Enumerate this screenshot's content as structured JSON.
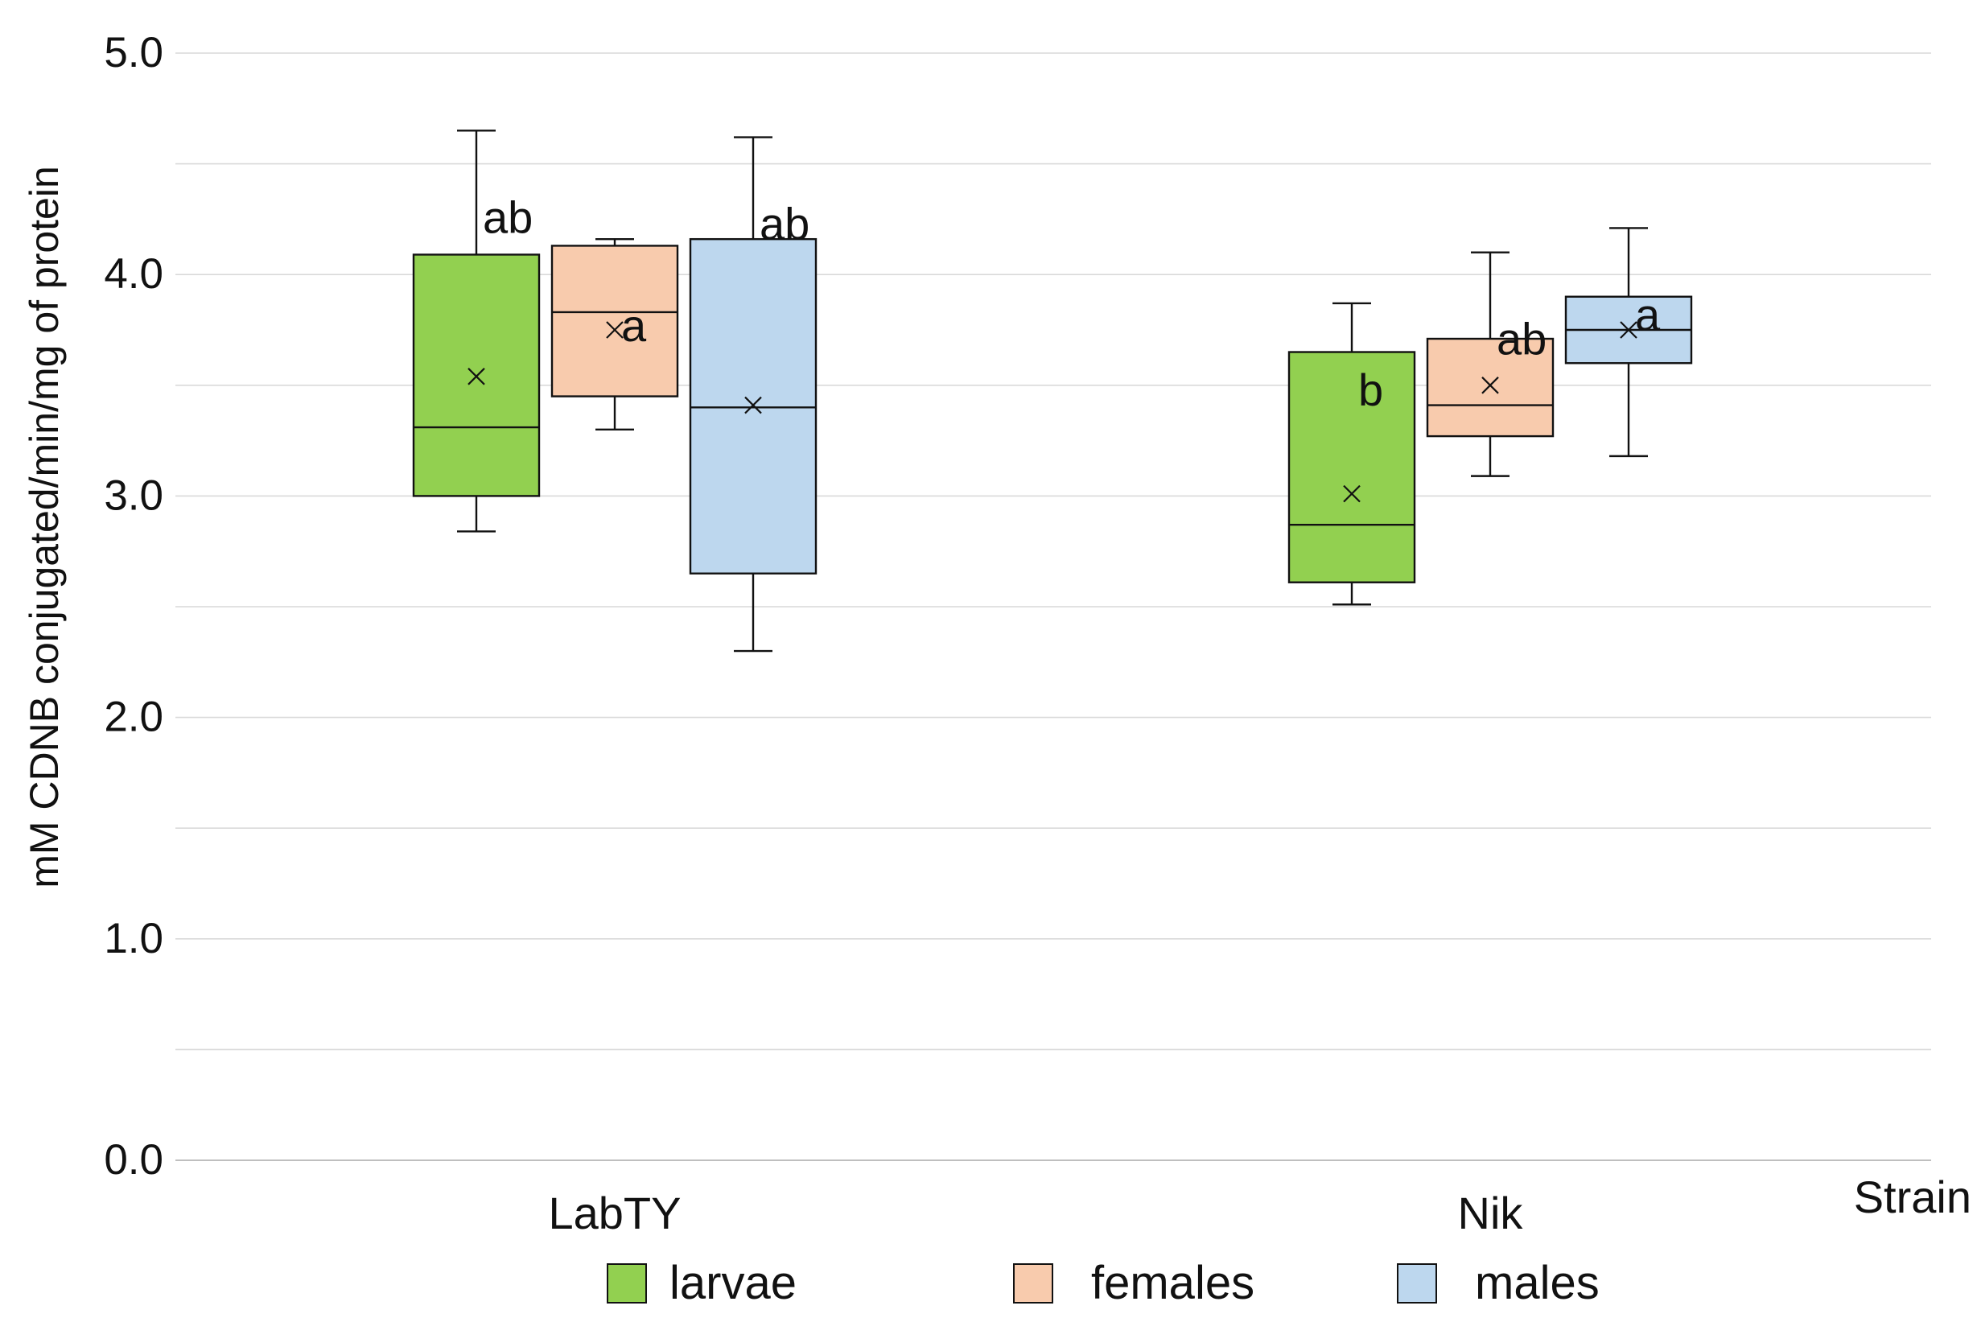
{
  "chart_data": {
    "type": "box",
    "ylabel": "mM CDNB conjugated/min/mg of protein",
    "xlabel": "Strain",
    "ylim": [
      0,
      5
    ],
    "yticks": [
      {
        "value": 0,
        "label": "0.0"
      },
      {
        "value": 1,
        "label": "1.0"
      },
      {
        "value": 2,
        "label": "2.0"
      },
      {
        "value": 3,
        "label": "3.0"
      },
      {
        "value": 4,
        "label": "4.0"
      },
      {
        "value": 5,
        "label": "5.0"
      }
    ],
    "minor_grid_step": 0.5,
    "grid": true,
    "legend_position": "bottom",
    "categories": [
      "LabTY",
      "Nik"
    ],
    "series": [
      {
        "name": "larvae",
        "color": "#92D050",
        "boxes": [
          {
            "category": "LabTY",
            "min": 2.84,
            "q1": 3.0,
            "median": 3.31,
            "q3": 4.09,
            "max": 4.65,
            "mean": 3.54,
            "label": "ab"
          },
          {
            "category": "Nik",
            "min": 2.51,
            "q1": 2.61,
            "median": 2.87,
            "q3": 3.65,
            "max": 3.87,
            "mean": 3.01,
            "label": "b"
          }
        ]
      },
      {
        "name": "females",
        "color": "#F8CBAD",
        "boxes": [
          {
            "category": "LabTY",
            "min": 3.3,
            "q1": 3.45,
            "median": 3.83,
            "q3": 4.13,
            "max": 4.16,
            "mean": 3.75,
            "label": "a"
          },
          {
            "category": "Nik",
            "min": 3.09,
            "q1": 3.27,
            "median": 3.41,
            "q3": 3.71,
            "max": 4.1,
            "mean": 3.5,
            "label": "ab"
          }
        ]
      },
      {
        "name": "males",
        "color": "#BDD7EE",
        "boxes": [
          {
            "category": "LabTY",
            "min": 2.3,
            "q1": 2.65,
            "median": 3.4,
            "q3": 4.16,
            "max": 4.62,
            "mean": 3.41,
            "label": "ab"
          },
          {
            "category": "Nik",
            "min": 3.18,
            "q1": 3.6,
            "median": 3.75,
            "q3": 3.9,
            "max": 4.21,
            "mean": 3.75,
            "label": "a"
          }
        ]
      }
    ]
  }
}
